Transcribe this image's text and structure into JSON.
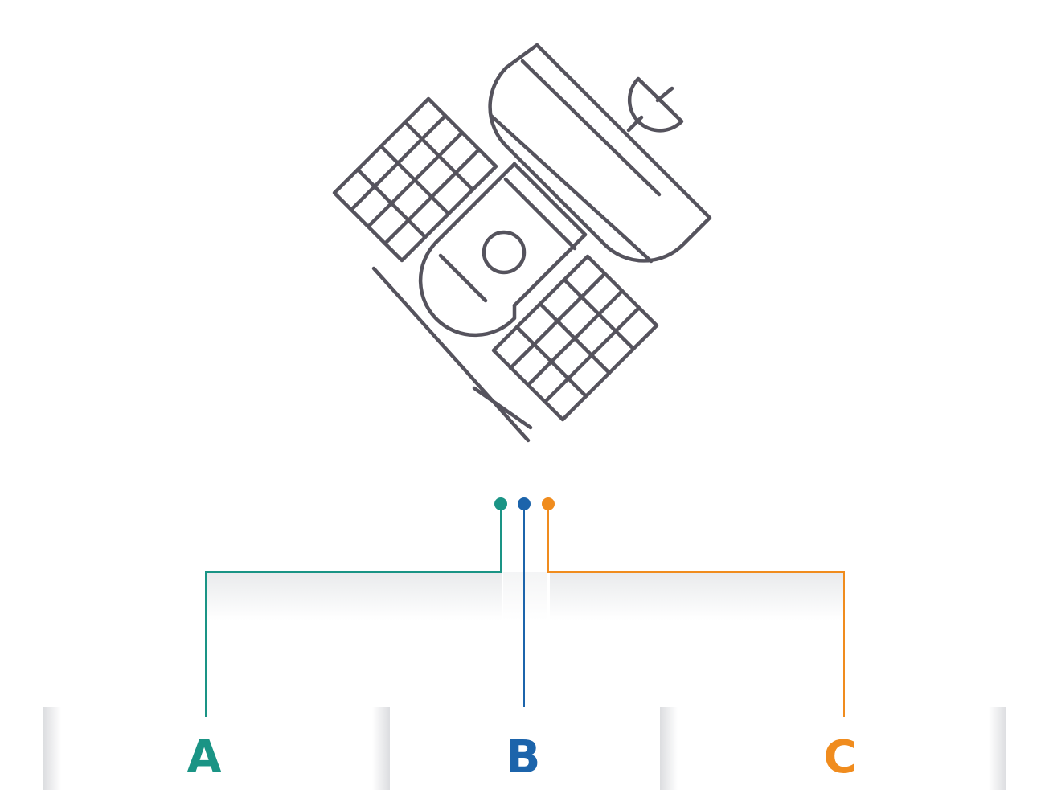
{
  "options": [
    {
      "key": "a",
      "label": "A",
      "color": "#1a9485"
    },
    {
      "key": "b",
      "label": "B",
      "color": "#1c64ab"
    },
    {
      "key": "c",
      "label": "C",
      "color": "#f08c1e"
    }
  ],
  "icon": {
    "name": "satellite-icon",
    "stroke_color": "#55535d"
  }
}
